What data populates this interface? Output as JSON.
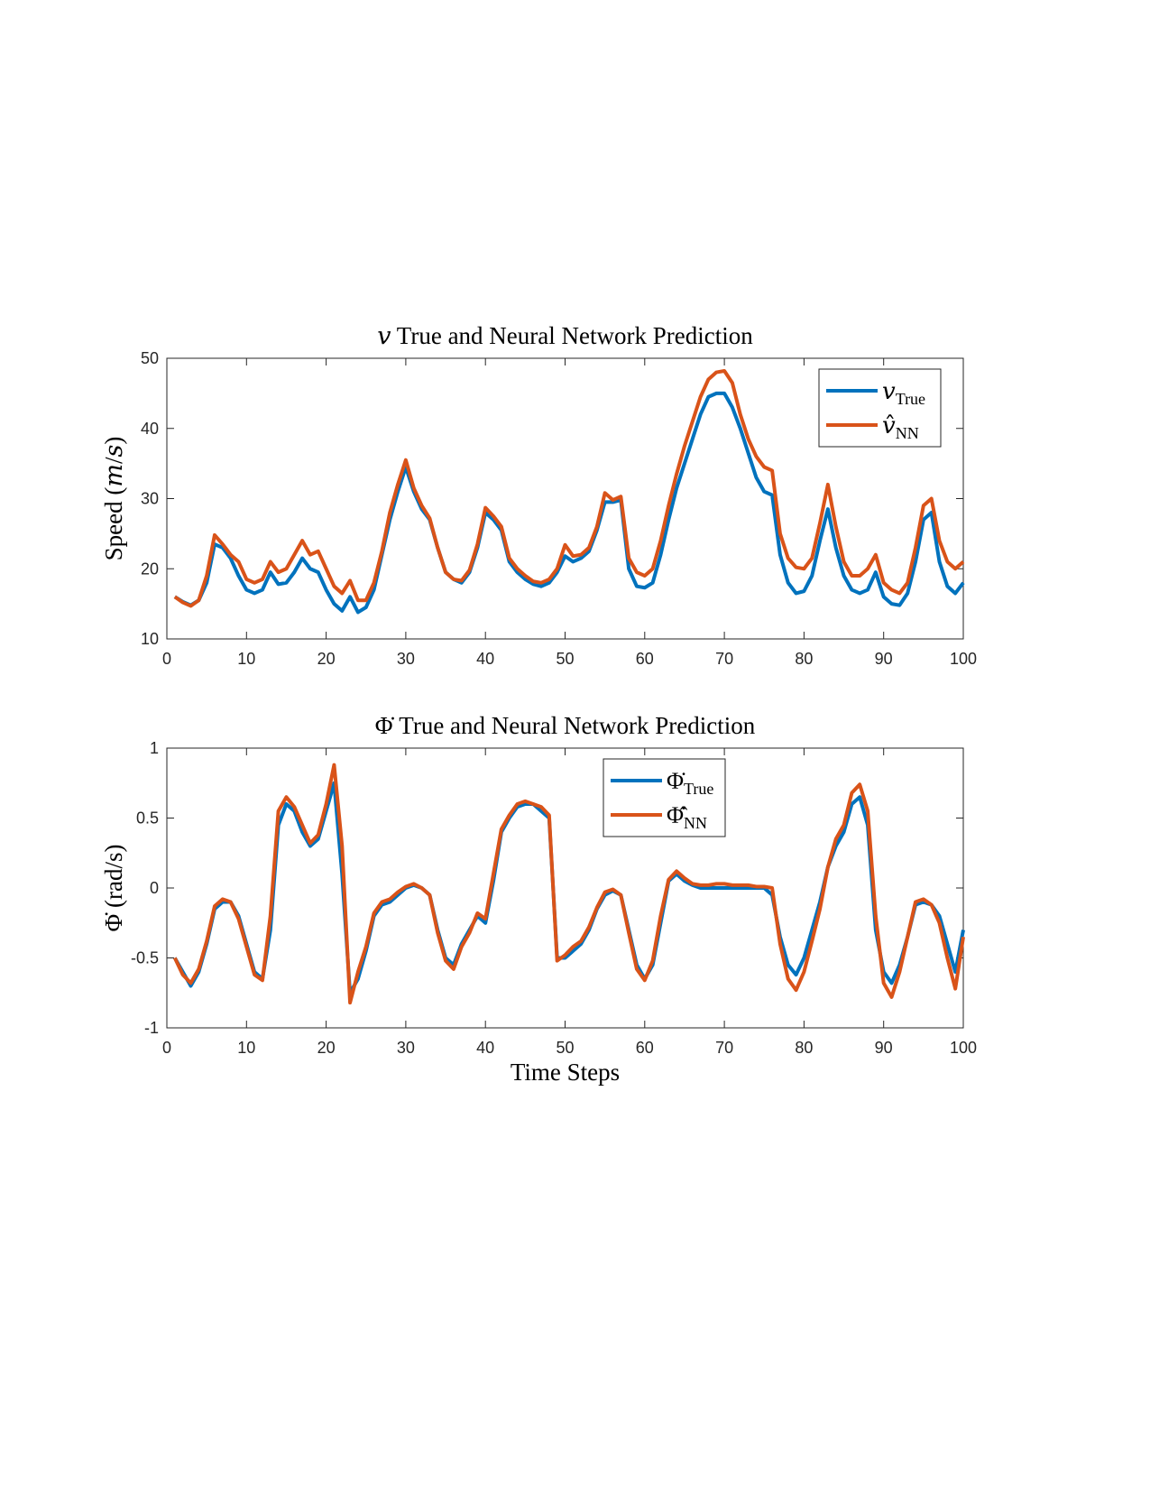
{
  "chart_data": [
    {
      "type": "line",
      "title": "𝑣 True and Neural Network Prediction",
      "ylabel": "Speed (𝑚/𝑠)",
      "x": [
        1,
        2,
        3,
        4,
        5,
        6,
        7,
        8,
        9,
        10,
        11,
        12,
        13,
        14,
        15,
        16,
        17,
        18,
        19,
        20,
        21,
        22,
        23,
        24,
        25,
        26,
        27,
        28,
        29,
        30,
        31,
        32,
        33,
        34,
        35,
        36,
        37,
        38,
        39,
        40,
        41,
        42,
        43,
        44,
        45,
        46,
        47,
        48,
        49,
        50,
        51,
        52,
        53,
        54,
        55,
        56,
        57,
        58,
        59,
        60,
        61,
        62,
        63,
        64,
        65,
        66,
        67,
        68,
        69,
        70,
        71,
        72,
        73,
        74,
        75,
        76,
        77,
        78,
        79,
        80,
        81,
        82,
        83,
        84,
        85,
        86,
        87,
        88,
        89,
        90,
        91,
        92,
        93,
        94,
        95,
        96,
        97,
        98,
        99,
        100
      ],
      "series": [
        {
          "name": "𝑣",
          "subscript": "True",
          "color": "#0072BD",
          "values": [
            16,
            15.3,
            14.8,
            15.5,
            18,
            23.5,
            23,
            21.5,
            19,
            17,
            16.5,
            17,
            19.5,
            17.8,
            18,
            19.5,
            21.5,
            20,
            19.5,
            17,
            15,
            14,
            16,
            13.8,
            14.5,
            17,
            22,
            27,
            31,
            34.5,
            31,
            28.5,
            27,
            23,
            19.5,
            18.5,
            18,
            19.5,
            23,
            28,
            27,
            25.5,
            21,
            19.5,
            18.5,
            17.8,
            17.5,
            18,
            19.5,
            21.8,
            21,
            21.5,
            22.5,
            25.5,
            29.5,
            29.5,
            29.8,
            20,
            17.5,
            17.3,
            18,
            22,
            27,
            31.5,
            35,
            38.5,
            42,
            44.5,
            45,
            45,
            43,
            40,
            36.5,
            33,
            31,
            30.5,
            22,
            18,
            16.5,
            16.8,
            19,
            24,
            28.5,
            23,
            19,
            17,
            16.5,
            17,
            19.5,
            16,
            15,
            14.8,
            16.5,
            21,
            27,
            28,
            21,
            17.5,
            16.5,
            18
          ]
        },
        {
          "name": "𝑣̂",
          "subscript": "NN",
          "color": "#D95319",
          "values": [
            16,
            15.2,
            14.7,
            15.5,
            19,
            24.8,
            23.5,
            22,
            21,
            18.5,
            18,
            18.5,
            21,
            19.5,
            20,
            22,
            24,
            22,
            22.5,
            20,
            17.5,
            16.5,
            18.3,
            15.5,
            15.5,
            18,
            22.5,
            28,
            32,
            35.5,
            31.5,
            29,
            27.2,
            23,
            19.5,
            18.5,
            18.3,
            19.8,
            23.5,
            28.7,
            27.5,
            26,
            21.5,
            20,
            19,
            18.2,
            18,
            18.5,
            20,
            23.4,
            21.8,
            22,
            23,
            26,
            30.8,
            29.8,
            30.3,
            21.5,
            19.5,
            19,
            20,
            24,
            29,
            33.5,
            37.5,
            41,
            44.5,
            47,
            48,
            48.2,
            46.5,
            42,
            38.5,
            36,
            34.5,
            34,
            25,
            21.5,
            20.2,
            20,
            21.5,
            26.5,
            32,
            26,
            21,
            19,
            19,
            20,
            22,
            18,
            17,
            16.5,
            18,
            23,
            29,
            30,
            24,
            21,
            20,
            21
          ]
        }
      ],
      "xlim": [
        0,
        100
      ],
      "xticks": [
        0,
        10,
        20,
        30,
        40,
        50,
        60,
        70,
        80,
        90,
        100
      ],
      "ylim": [
        10,
        50
      ],
      "yticks": [
        10,
        20,
        30,
        40,
        50
      ],
      "legend": "northeast"
    },
    {
      "type": "line",
      "title": "Φ̇ True and Neural Network Prediction",
      "ylabel": "Φ̇ (rad/s)",
      "xlabel": "Time Steps",
      "x": [
        1,
        2,
        3,
        4,
        5,
        6,
        7,
        8,
        9,
        10,
        11,
        12,
        13,
        14,
        15,
        16,
        17,
        18,
        19,
        20,
        21,
        22,
        23,
        24,
        25,
        26,
        27,
        28,
        29,
        30,
        31,
        32,
        33,
        34,
        35,
        36,
        37,
        38,
        39,
        40,
        41,
        42,
        43,
        44,
        45,
        46,
        47,
        48,
        49,
        50,
        51,
        52,
        53,
        54,
        55,
        56,
        57,
        58,
        59,
        60,
        61,
        62,
        63,
        64,
        65,
        66,
        67,
        68,
        69,
        70,
        71,
        72,
        73,
        74,
        75,
        76,
        77,
        78,
        79,
        80,
        81,
        82,
        83,
        84,
        85,
        86,
        87,
        88,
        89,
        90,
        91,
        92,
        93,
        94,
        95,
        96,
        97,
        98,
        99,
        100
      ],
      "series": [
        {
          "name": "Φ̇",
          "subscript": "True",
          "color": "#0072BD",
          "values": [
            -0.5,
            -0.6,
            -0.7,
            -0.6,
            -0.4,
            -0.15,
            -0.1,
            -0.1,
            -0.2,
            -0.4,
            -0.6,
            -0.65,
            -0.3,
            0.45,
            0.6,
            0.55,
            0.4,
            0.3,
            0.35,
            0.55,
            0.75,
            0.1,
            -0.75,
            -0.65,
            -0.45,
            -0.2,
            -0.12,
            -0.1,
            -0.05,
            0,
            0.02,
            0,
            -0.05,
            -0.3,
            -0.5,
            -0.55,
            -0.4,
            -0.3,
            -0.2,
            -0.25,
            0.05,
            0.4,
            0.5,
            0.58,
            0.6,
            0.6,
            0.55,
            0.5,
            -0.5,
            -0.5,
            -0.45,
            -0.4,
            -0.3,
            -0.15,
            -0.05,
            -0.02,
            -0.05,
            -0.3,
            -0.55,
            -0.65,
            -0.55,
            -0.25,
            0.05,
            0.1,
            0.05,
            0.02,
            0,
            0,
            0,
            0,
            0,
            0,
            0,
            0,
            0,
            -0.05,
            -0.35,
            -0.55,
            -0.62,
            -0.5,
            -0.3,
            -0.1,
            0.15,
            0.3,
            0.4,
            0.6,
            0.65,
            0.45,
            -0.3,
            -0.6,
            -0.68,
            -0.55,
            -0.35,
            -0.12,
            -0.1,
            -0.12,
            -0.2,
            -0.4,
            -0.6,
            -0.3
          ]
        },
        {
          "name": "Φ̇̂",
          "subscript": "NN",
          "color": "#D95319",
          "values": [
            -0.5,
            -0.62,
            -0.68,
            -0.58,
            -0.38,
            -0.13,
            -0.08,
            -0.1,
            -0.22,
            -0.42,
            -0.62,
            -0.66,
            -0.2,
            0.55,
            0.65,
            0.58,
            0.45,
            0.32,
            0.38,
            0.6,
            0.88,
            0.3,
            -0.82,
            -0.6,
            -0.42,
            -0.18,
            -0.1,
            -0.08,
            -0.03,
            0.01,
            0.03,
            0,
            -0.05,
            -0.32,
            -0.52,
            -0.58,
            -0.42,
            -0.32,
            -0.18,
            -0.22,
            0.1,
            0.42,
            0.52,
            0.6,
            0.62,
            0.6,
            0.58,
            0.52,
            -0.52,
            -0.48,
            -0.42,
            -0.38,
            -0.28,
            -0.14,
            -0.03,
            -0.01,
            -0.05,
            -0.32,
            -0.58,
            -0.66,
            -0.52,
            -0.2,
            0.06,
            0.12,
            0.07,
            0.03,
            0.02,
            0.02,
            0.03,
            0.03,
            0.02,
            0.02,
            0.02,
            0.01,
            0.01,
            0,
            -0.4,
            -0.65,
            -0.73,
            -0.6,
            -0.38,
            -0.15,
            0.15,
            0.35,
            0.45,
            0.68,
            0.74,
            0.55,
            -0.2,
            -0.68,
            -0.78,
            -0.6,
            -0.35,
            -0.1,
            -0.08,
            -0.12,
            -0.25,
            -0.5,
            -0.72,
            -0.35
          ]
        }
      ],
      "xlim": [
        0,
        100
      ],
      "xticks": [
        0,
        10,
        20,
        30,
        40,
        50,
        60,
        70,
        80,
        90,
        100
      ],
      "ylim": [
        -1,
        1
      ],
      "yticks": [
        -1,
        -0.5,
        0,
        0.5,
        1
      ],
      "legend": "north"
    }
  ]
}
